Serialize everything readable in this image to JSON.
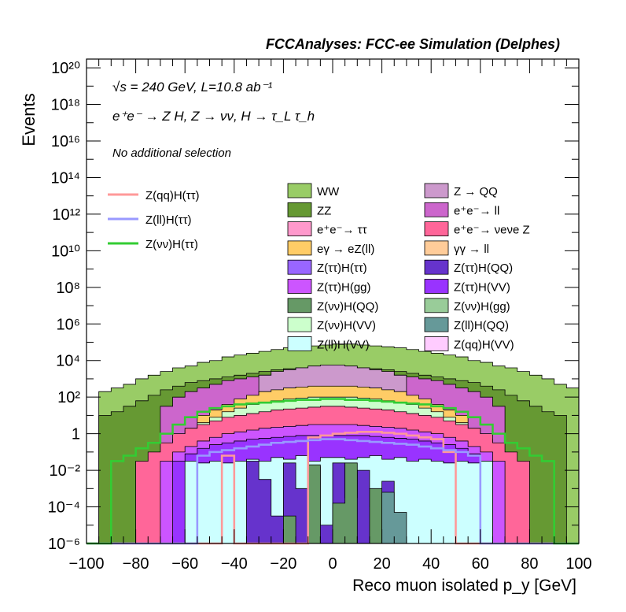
{
  "header": {
    "title": "FCCAnalyses: FCC-ee Simulation (Delphes)"
  },
  "annotations": {
    "energy": "√s = 240 GeV, L=10.8 ab⁻¹",
    "process": "e⁺e⁻ → Z H, Z → νν, H → τ_L τ_h",
    "selection": "No additional selection"
  },
  "chart_data": {
    "type": "area",
    "title": "FCCAnalyses: FCC-ee Simulation (Delphes)",
    "xlabel": "Reco muon isolated p_y [GeV]",
    "ylabel": "Events",
    "xlim": [
      -100,
      100
    ],
    "ylim": [
      1e-06,
      3e+20
    ],
    "ylog": true,
    "grid": false,
    "x_ticks": [
      "−100",
      "−80",
      "−60",
      "−40",
      "−20",
      "0",
      "20",
      "40",
      "60",
      "80",
      "100"
    ],
    "y_ticks": [
      "10⁻⁶",
      "10⁻⁴",
      "10⁻²",
      "1",
      "10²",
      "10⁴",
      "10⁶",
      "10⁸",
      "10¹⁰",
      "10¹²",
      "10¹⁴",
      "10¹⁶",
      "10¹⁸",
      "10²⁰"
    ],
    "stacked_layers_top_log10": [
      {
        "name": "WW",
        "color": "#99cc66",
        "values": [
          -6,
          2.3,
          2.5,
          2.7,
          3.0,
          3.2,
          3.4,
          3.6,
          3.7,
          3.9,
          4.0,
          4.2,
          4.3,
          4.4,
          4.5,
          4.6,
          4.7,
          4.75,
          4.8,
          4.85,
          4.9,
          4.9,
          4.85,
          4.8,
          4.75,
          4.7,
          4.6,
          4.5,
          4.4,
          4.3,
          4.2,
          4.0,
          3.9,
          3.7,
          3.6,
          3.4,
          3.2,
          3.0,
          2.7,
          2.5
        ]
      },
      {
        "name": "ZZ",
        "color": "#669933",
        "values": [
          -6,
          1.0,
          1.2,
          1.5,
          1.8,
          2.1,
          2.4,
          2.6,
          2.8,
          2.9,
          3.0,
          3.1,
          3.2,
          3.3,
          3.4,
          3.5,
          3.55,
          3.6,
          3.65,
          3.7,
          3.7,
          3.65,
          3.6,
          3.55,
          3.5,
          3.4,
          3.3,
          3.2,
          3.1,
          3.0,
          2.9,
          2.8,
          2.6,
          2.4,
          2.1,
          1.8,
          1.5,
          1.2,
          1.0,
          -6
        ]
      },
      {
        "name": "e+e- → ll",
        "color": "#cc66cc",
        "values": [
          -6,
          -6,
          -6,
          -6,
          -6,
          -6,
          1.5,
          2.0,
          2.3,
          2.5,
          2.7,
          2.9,
          3.0,
          3.1,
          3.2,
          3.3,
          3.35,
          3.4,
          3.45,
          3.5,
          3.5,
          3.45,
          3.4,
          3.35,
          3.3,
          3.2,
          3.1,
          3.0,
          2.9,
          2.7,
          2.5,
          2.3,
          2.0,
          1.5,
          -6,
          -6,
          -6,
          -6,
          -6,
          -6
        ]
      },
      {
        "name": "Z → QQ",
        "color": "#cc99cc",
        "values": [
          -6,
          -6,
          -6,
          -6,
          -6,
          -6,
          -6,
          -6,
          -6,
          -6,
          -6,
          -6,
          -6,
          -6,
          3.2,
          3.4,
          3.5,
          3.6,
          3.7,
          3.75,
          3.75,
          3.7,
          3.6,
          3.5,
          3.4,
          3.2,
          -6,
          -6,
          -6,
          -6,
          -6,
          -6,
          -6,
          -6,
          -6,
          -6,
          -6,
          -6,
          -6,
          -6
        ]
      },
      {
        "name": "eγ → eZ(ll)",
        "color": "#ffcc66",
        "values": [
          -6,
          -6,
          -6,
          -6,
          -6,
          -6,
          -6,
          -6,
          -6,
          1.0,
          1.3,
          1.6,
          1.9,
          2.1,
          2.3,
          2.4,
          2.5,
          2.55,
          2.6,
          2.6,
          2.6,
          2.6,
          2.55,
          2.5,
          2.4,
          2.3,
          2.1,
          1.9,
          1.6,
          1.3,
          1.0,
          -6,
          -6,
          -6,
          -6,
          -6,
          -6,
          -6,
          -6,
          -6
        ]
      },
      {
        "name": "Z(νν)H(VV)",
        "color": "#ccffcc",
        "values": [
          -6,
          -6,
          -6,
          -6,
          -6,
          -6,
          -1.0,
          -0.3,
          0.2,
          0.6,
          0.9,
          1.2,
          1.4,
          1.6,
          1.7,
          1.8,
          1.9,
          1.95,
          2.0,
          2.0,
          2.0,
          2.0,
          1.95,
          1.9,
          1.8,
          1.7,
          1.6,
          1.4,
          1.2,
          0.9,
          0.6,
          0.2,
          -0.3,
          -1.0,
          -6,
          -6,
          -6,
          -6,
          -6,
          -6
        ]
      },
      {
        "name": "e+e- → νeνe Z",
        "color": "#ff6699",
        "values": [
          -6,
          -6,
          -6,
          -6,
          -1.5,
          -1.0,
          -0.5,
          0.0,
          0.3,
          0.5,
          0.7,
          0.9,
          1.0,
          1.1,
          1.2,
          1.3,
          1.35,
          1.4,
          1.45,
          1.5,
          1.5,
          1.45,
          1.4,
          1.35,
          1.3,
          1.2,
          1.1,
          1.0,
          0.9,
          0.7,
          0.5,
          0.3,
          0.0,
          -0.5,
          -1.0,
          -1.5,
          -6,
          -6,
          -6,
          -6
        ]
      },
      {
        "name": "Z(ττ)H(gg)",
        "color": "#cc55ff",
        "values": [
          -6,
          -6,
          -6,
          -6,
          -6,
          -6,
          -1.5,
          -1.0,
          -0.7,
          -0.4,
          -0.2,
          0.0,
          0.1,
          0.2,
          0.3,
          0.35,
          0.4,
          0.45,
          0.5,
          0.5,
          0.5,
          0.5,
          0.45,
          0.4,
          0.35,
          0.3,
          0.2,
          0.1,
          0.0,
          -0.2,
          -0.4,
          -0.7,
          -1.0,
          -1.5,
          -6,
          -6,
          -6,
          -6,
          -6,
          -6
        ]
      },
      {
        "name": "Z(ττ)H(VV)",
        "color": "#9933ff",
        "values": [
          -6,
          -6,
          -6,
          -6,
          -6,
          -6,
          -6,
          -1.5,
          -1.1,
          -0.8,
          -0.6,
          -0.5,
          -0.4,
          -0.3,
          -0.25,
          -0.2,
          -0.15,
          -0.1,
          -0.1,
          -0.1,
          -0.1,
          -0.1,
          -0.1,
          -0.15,
          -0.2,
          -0.25,
          -0.3,
          -0.4,
          -0.5,
          -0.6,
          -0.8,
          -1.1,
          -1.5,
          -6,
          -6,
          -6,
          -6,
          -6,
          -6,
          -6
        ]
      },
      {
        "name": "Z(ll)H(VV)",
        "color": "#ccffff",
        "values": [
          -6,
          -6,
          -6,
          -6,
          -6,
          -6,
          -6,
          -6,
          -1.5,
          -1.6,
          -1.5,
          -1.6,
          -1.5,
          -1.4,
          -1.5,
          -1.3,
          -1.4,
          -1.2,
          -1.5,
          -1.3,
          -1.3,
          -1.4,
          -1.3,
          -1.2,
          -1.4,
          -1.3,
          -1.5,
          -1.4,
          -1.5,
          -1.6,
          -1.5,
          -1.6,
          -1.5,
          -6,
          -6,
          -6,
          -6,
          -6,
          -6,
          -6
        ]
      },
      {
        "name": "Z(ττ)H(QQ)",
        "color": "#6633cc",
        "values": [
          -6,
          -6,
          -6,
          -6,
          -6,
          -6,
          -6,
          -6,
          -6,
          -6,
          -6,
          -6,
          -6,
          -1.5,
          -2.5,
          -4.5,
          -1.6,
          -3.0,
          -1.8,
          -5.0,
          -1.6,
          -3.5,
          -2.0,
          -4.0,
          -2.6,
          -6,
          -6,
          -6,
          -6,
          -6,
          -6,
          -6,
          -6,
          -6,
          -6,
          -6,
          -6,
          -6,
          -6,
          -6
        ]
      },
      {
        "name": "Z(νν)H(QQ)",
        "color": "#669966",
        "values": [
          -6,
          -6,
          -6,
          -6,
          -6,
          -6,
          -6,
          -6,
          -6,
          -6,
          -6,
          -6,
          -6,
          -6,
          -6,
          -6,
          -4.5,
          -6,
          -1.7,
          -6,
          -3.8,
          -1.6,
          -6,
          -3.0,
          -6,
          -6,
          -6,
          -6,
          -6,
          -6,
          -6,
          -6,
          -6,
          -6,
          -6,
          -6,
          -6,
          -6,
          -6,
          -6
        ]
      },
      {
        "name": "Z(ll)H(QQ)",
        "color": "#669999",
        "values": [
          -6,
          -6,
          -6,
          -6,
          -6,
          -6,
          -6,
          -6,
          -6,
          -6,
          -6,
          -6,
          -6,
          -6,
          -6,
          -6,
          -6,
          -6,
          -6,
          -6,
          -6,
          -6,
          -6,
          -6,
          -3.2,
          -4.3,
          -6,
          -6,
          -6,
          -6,
          -6,
          -6,
          -6,
          -6,
          -6,
          -6,
          -6,
          -6,
          -6,
          -6
        ]
      }
    ],
    "overlay_lines": [
      {
        "name": "Z(qq)H(ττ)",
        "color": "#ff9999",
        "values_log10": [
          -6,
          -6,
          -6,
          -6,
          -6,
          -6,
          -6,
          -6,
          -6,
          -6,
          -6,
          -1.2,
          -6,
          -6,
          -6,
          -6,
          -6,
          -6,
          -0.2,
          -0.1,
          0.0,
          0.05,
          0.1,
          0.1,
          0.05,
          0.0,
          -0.1,
          -0.2,
          -0.3,
          -1.0,
          -6,
          -6,
          -6,
          -6,
          -6,
          -6,
          -6,
          -6,
          -6,
          -6
        ]
      },
      {
        "name": "Z(ll)H(ττ)",
        "color": "#9999ff",
        "values_log10": [
          -6,
          -6,
          -6,
          -6,
          -6,
          -6,
          -6,
          -6,
          -6,
          -1.2,
          -1.0,
          -0.9,
          -0.8,
          -0.7,
          -0.6,
          -0.5,
          -0.45,
          -0.4,
          -0.35,
          -0.3,
          -0.3,
          -0.35,
          -0.4,
          -0.45,
          -0.5,
          -0.55,
          -0.6,
          -0.7,
          -0.8,
          -0.9,
          -1.0,
          -1.2,
          -6,
          -6,
          -6,
          -6,
          -6,
          -6,
          -6,
          -6
        ]
      },
      {
        "name": "Z(νν)H(ττ)",
        "color": "#33cc33",
        "values_log10": [
          -6,
          -6,
          -1.5,
          -1.2,
          -0.8,
          -0.5,
          0.0,
          0.5,
          0.9,
          1.2,
          1.4,
          1.5,
          1.6,
          1.65,
          1.7,
          1.75,
          1.8,
          1.85,
          1.85,
          1.9,
          1.9,
          1.85,
          1.85,
          1.8,
          1.75,
          1.7,
          1.65,
          1.6,
          1.5,
          1.4,
          1.2,
          0.9,
          0.5,
          0.0,
          -0.5,
          -0.8,
          -1.2,
          -1.5,
          -6,
          -6
        ]
      }
    ]
  },
  "legend_lines": [
    {
      "label": "Z(qq)H(ττ)",
      "color": "#ff9999"
    },
    {
      "label": "Z(ll)H(ττ)",
      "color": "#9999ff"
    },
    {
      "label": "Z(νν)H(ττ)",
      "color": "#33cc33"
    }
  ],
  "legend_fills": [
    {
      "label": "WW",
      "color": "#99cc66"
    },
    {
      "label": "Z → QQ",
      "color": "#cc99cc"
    },
    {
      "label": "ZZ",
      "color": "#669933"
    },
    {
      "label": "e⁺e⁻→ ll",
      "color": "#cc66cc"
    },
    {
      "label": "e⁺e⁻→ ττ",
      "color": "#ff99cc"
    },
    {
      "label": "e⁺e⁻→ νeνe Z",
      "color": "#ff6699"
    },
    {
      "label": "eγ → eZ(ll)",
      "color": "#ffcc66"
    },
    {
      "label": "γγ → ll",
      "color": "#ffcc99"
    },
    {
      "label": "Z(ττ)H(ττ)",
      "color": "#9966ff"
    },
    {
      "label": "Z(ττ)H(QQ)",
      "color": "#6633cc"
    },
    {
      "label": "Z(ττ)H(gg)",
      "color": "#cc55ff"
    },
    {
      "label": "Z(ττ)H(VV)",
      "color": "#9933ff"
    },
    {
      "label": "Z(νν)H(QQ)",
      "color": "#669966"
    },
    {
      "label": "Z(νν)H(gg)",
      "color": "#99cc99"
    },
    {
      "label": "Z(νν)H(VV)",
      "color": "#ccffcc"
    },
    {
      "label": "Z(ll)H(QQ)",
      "color": "#669999"
    },
    {
      "label": "Z(ll)H(VV)",
      "color": "#ccffff"
    },
    {
      "label": "Z(qq)H(VV)",
      "color": "#ffccff"
    }
  ]
}
